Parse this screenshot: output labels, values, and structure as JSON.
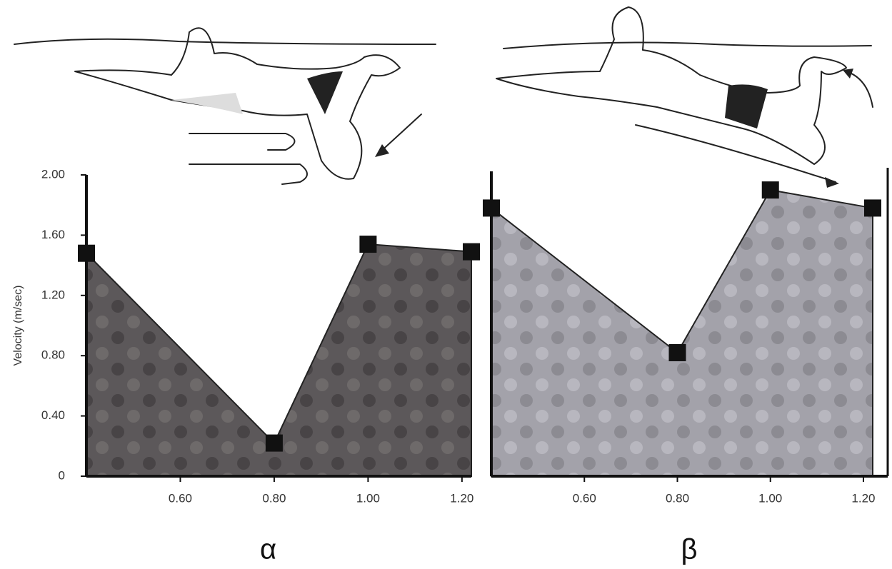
{
  "chart_data": [
    {
      "type": "area",
      "title": "α",
      "y_label": "Velocity (m/sec)",
      "x": [
        0.4,
        0.8,
        1.0,
        1.22
      ],
      "values": [
        1.48,
        0.22,
        1.54,
        1.49
      ],
      "color": "#5c585a",
      "xlim": [
        0.4,
        1.22
      ],
      "ylim": [
        0,
        2.0
      ],
      "xticks": [
        {
          "value": 0.6,
          "label": "0.60"
        },
        {
          "value": 0.8,
          "label": "0.80"
        },
        {
          "value": 1.0,
          "label": "1.00"
        },
        {
          "value": 1.2,
          "label": "1.20"
        }
      ],
      "yticks": [
        0,
        {
          "value": 0.4,
          "label": "0.40"
        },
        {
          "value": 0.8,
          "label": "0.80"
        },
        {
          "value": 1.2,
          "label": "1.20"
        },
        {
          "value": 1.6,
          "label": "1.60"
        },
        {
          "value": 2.0,
          "label": "2.00"
        }
      ]
    },
    {
      "type": "area",
      "title": "β",
      "x": [
        0.4,
        0.8,
        1.0,
        1.22
      ],
      "values": [
        1.78,
        0.82,
        1.9,
        1.78
      ],
      "color": "#a3a2aa",
      "xlim": [
        0.4,
        1.22
      ],
      "ylim": [
        0,
        2.0
      ],
      "xticks": [
        {
          "value": 0.6,
          "label": "0.60"
        },
        {
          "value": 0.8,
          "label": "0.80"
        },
        {
          "value": 1.0,
          "label": "1.00"
        },
        {
          "value": 1.2,
          "label": "1.20"
        }
      ]
    }
  ]
}
